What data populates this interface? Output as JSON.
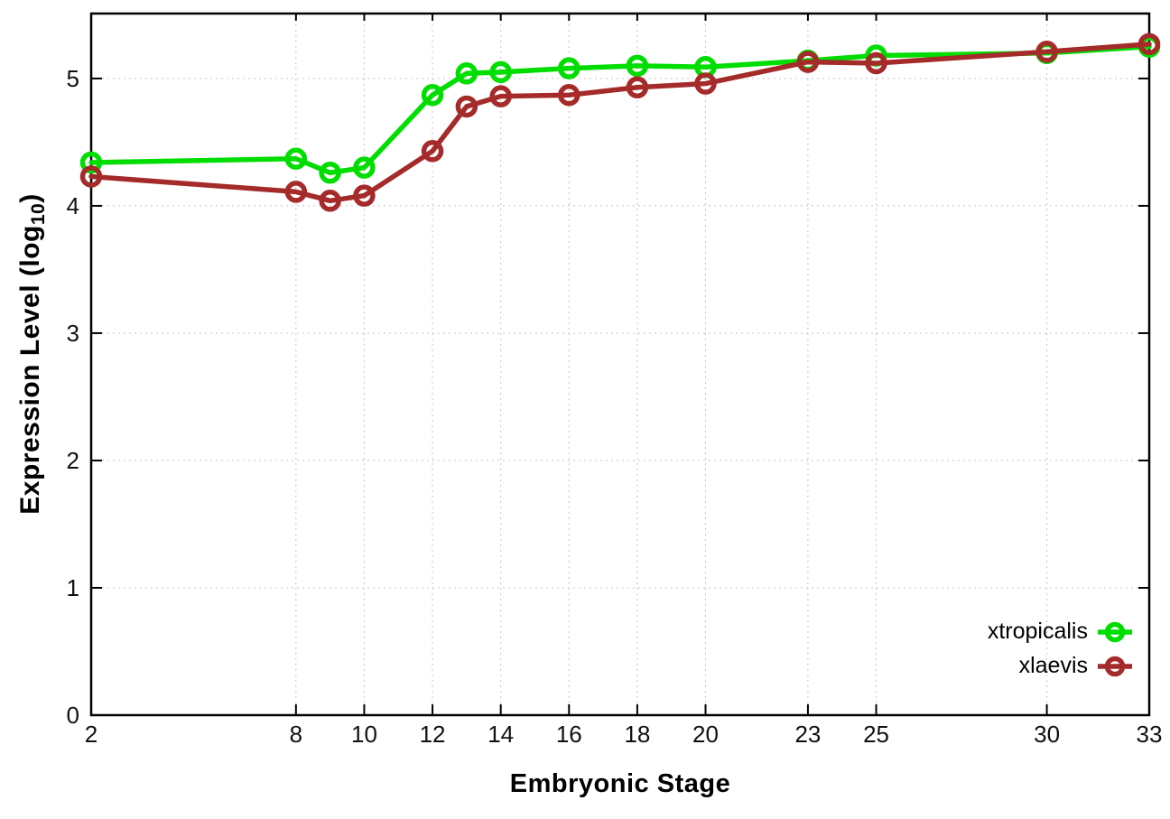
{
  "chart_data": {
    "type": "line",
    "title": "",
    "xlabel": "Embryonic Stage",
    "ylabel": {
      "text": "Expression Level (log10)",
      "main": "Expression Level (log",
      "sub": "10",
      "close": ")"
    },
    "x_ticks": [
      2,
      8,
      10,
      12,
      14,
      16,
      18,
      20,
      23,
      25,
      30,
      33
    ],
    "y_ticks": [
      0,
      1,
      2,
      3,
      4,
      5
    ],
    "xlim": [
      2,
      33
    ],
    "ylim": [
      0,
      5.51
    ],
    "grid": true,
    "grid_color": "#c4c4c4",
    "axis_color": "#000000",
    "tick_label_color": "#111111",
    "background": "#ffffff",
    "legend_position": "bottom-right-inside",
    "x": [
      2,
      8,
      9,
      10,
      12,
      13,
      14,
      16,
      18,
      20,
      23,
      25,
      30,
      33
    ],
    "series": [
      {
        "name": "xtropicalis",
        "color": "#00dd00",
        "values": [
          4.34,
          4.37,
          4.26,
          4.3,
          4.87,
          5.04,
          5.05,
          5.08,
          5.1,
          5.09,
          5.14,
          5.18,
          5.2,
          5.25
        ]
      },
      {
        "name": "xlaevis",
        "color": "#a52a2a",
        "values": [
          4.23,
          4.11,
          4.04,
          4.08,
          4.43,
          4.78,
          4.86,
          4.87,
          4.93,
          4.96,
          5.13,
          5.12,
          5.21,
          5.27
        ]
      }
    ]
  }
}
